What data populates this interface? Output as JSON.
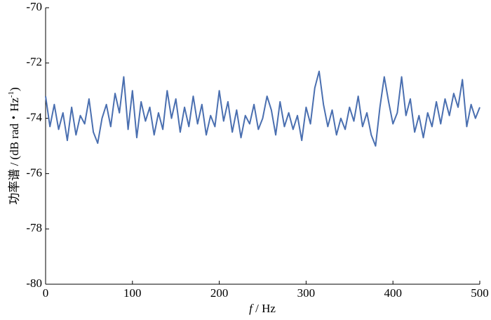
{
  "chart_data": {
    "type": "line",
    "x_label": {
      "var": "f",
      "unit": "/ Hz"
    },
    "y_label": {
      "main": "功率谱 / (dB rad・Hz",
      "sup": "-1",
      "end": ")"
    },
    "xlim": [
      0,
      500
    ],
    "xticks": [
      0,
      100,
      200,
      300,
      400,
      500
    ],
    "ylim": [
      -80,
      -70
    ],
    "yticks": [
      -80,
      -78,
      -76,
      -74,
      -72,
      -70
    ],
    "x": [
      0,
      5,
      10,
      15,
      20,
      25,
      30,
      35,
      40,
      45,
      50,
      55,
      60,
      65,
      70,
      75,
      80,
      85,
      90,
      95,
      100,
      105,
      110,
      115,
      120,
      125,
      130,
      135,
      140,
      145,
      150,
      155,
      160,
      165,
      170,
      175,
      180,
      185,
      190,
      195,
      200,
      205,
      210,
      215,
      220,
      225,
      230,
      235,
      240,
      245,
      250,
      255,
      260,
      265,
      270,
      275,
      280,
      285,
      290,
      295,
      300,
      305,
      310,
      315,
      320,
      325,
      330,
      335,
      340,
      345,
      350,
      355,
      360,
      365,
      370,
      375,
      380,
      385,
      390,
      395,
      400,
      405,
      410,
      415,
      420,
      425,
      430,
      435,
      440,
      445,
      450,
      455,
      460,
      465,
      470,
      475,
      480,
      485,
      490,
      495,
      500
    ],
    "series": [
      {
        "color": "#4a6fb0",
        "values": [
          -73.2,
          -74.3,
          -73.5,
          -74.4,
          -73.8,
          -74.8,
          -73.6,
          -74.6,
          -73.9,
          -74.2,
          -73.3,
          -74.5,
          -74.9,
          -74.0,
          -73.5,
          -74.3,
          -73.1,
          -73.8,
          -72.5,
          -74.4,
          -73.0,
          -74.7,
          -73.4,
          -74.1,
          -73.6,
          -74.6,
          -73.8,
          -74.4,
          -73.0,
          -74.0,
          -73.3,
          -74.5,
          -73.6,
          -74.3,
          -73.2,
          -74.2,
          -73.5,
          -74.6,
          -73.9,
          -74.3,
          -73.0,
          -74.1,
          -73.4,
          -74.5,
          -73.7,
          -74.7,
          -73.9,
          -74.2,
          -73.5,
          -74.4,
          -74.0,
          -73.2,
          -73.7,
          -74.6,
          -73.4,
          -74.3,
          -73.8,
          -74.4,
          -73.9,
          -74.8,
          -73.6,
          -74.2,
          -72.9,
          -72.3,
          -73.5,
          -74.3,
          -73.7,
          -74.6,
          -74.0,
          -74.4,
          -73.6,
          -74.1,
          -73.2,
          -74.3,
          -73.8,
          -74.6,
          -75.0,
          -73.6,
          -72.5,
          -73.4,
          -74.2,
          -73.8,
          -72.5,
          -73.9,
          -73.3,
          -74.5,
          -73.9,
          -74.7,
          -73.8,
          -74.3,
          -73.4,
          -74.2,
          -73.3,
          -73.9,
          -73.1,
          -73.6,
          -72.6,
          -74.3,
          -73.5,
          -74.0,
          -73.6
        ]
      }
    ]
  }
}
